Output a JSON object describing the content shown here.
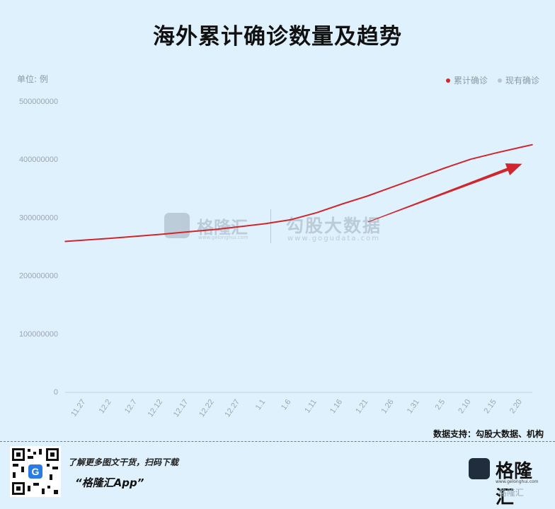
{
  "title": "海外累计确诊数量及趋势",
  "unit_label": "单位: 例",
  "legend": [
    {
      "label": "累计确诊",
      "color": "#d0262d"
    },
    {
      "label": "现有确诊",
      "color": "#b9c4cf"
    }
  ],
  "source": "数据支持：勾股大数据、机构",
  "footer": {
    "promo_line1": "了解更多图文干货，扫码下载",
    "promo_line2": "“格隆汇App”",
    "brand_name": "格隆汇",
    "brand_url": "www.gelonghui.com",
    "brand_sub": "格隆汇"
  },
  "watermarks": {
    "left_name": "格隆汇",
    "left_url": "www.gelonghui.com",
    "right_name": "勾股大数据",
    "right_url": "www.gogudata.com"
  },
  "chart_data": {
    "type": "line",
    "title": "海外累计确诊数量及趋势",
    "ylabel": "单位: 例",
    "xlabel": "",
    "ylim": [
      0,
      500000000
    ],
    "y_ticks": [
      0,
      100000000,
      200000000,
      300000000,
      400000000,
      500000000
    ],
    "y_tick_labels": [
      "0",
      "100000000",
      "200000000",
      "300000000",
      "400000000",
      "500000000"
    ],
    "x_tick_labels": [
      "11.27",
      "12.2",
      "12.7",
      "12.12",
      "12.17",
      "12.22",
      "12.27",
      "1.1",
      "1.6",
      "1.11",
      "1.16",
      "1.21",
      "1.26",
      "1.31",
      "2.5",
      "2.10",
      "2.15",
      "2.20"
    ],
    "grid": false,
    "legend_position": "top-right",
    "series": [
      {
        "name": "累计确诊",
        "color": "#d0262d",
        "x": [
          "11.23",
          "11.27",
          "12.2",
          "12.7",
          "12.12",
          "12.17",
          "12.22",
          "12.27",
          "1.1",
          "1.6",
          "1.11",
          "1.16",
          "1.21",
          "1.26",
          "1.31",
          "2.5",
          "2.10",
          "2.15",
          "2.20",
          "2.22"
        ],
        "values": [
          258500000,
          261000000,
          264000000,
          267500000,
          271000000,
          275000000,
          279000000,
          284000000,
          289000000,
          296000000,
          308000000,
          323000000,
          337000000,
          353000000,
          369000000,
          385000000,
          400000000,
          411000000,
          421000000,
          425000000
        ]
      }
    ],
    "annotations": [
      {
        "type": "trend-arrow",
        "color": "#d0262d",
        "from": {
          "x": "1.21",
          "y": 292000000
        },
        "to": {
          "x": "2.20",
          "y": 392000000
        }
      }
    ]
  }
}
